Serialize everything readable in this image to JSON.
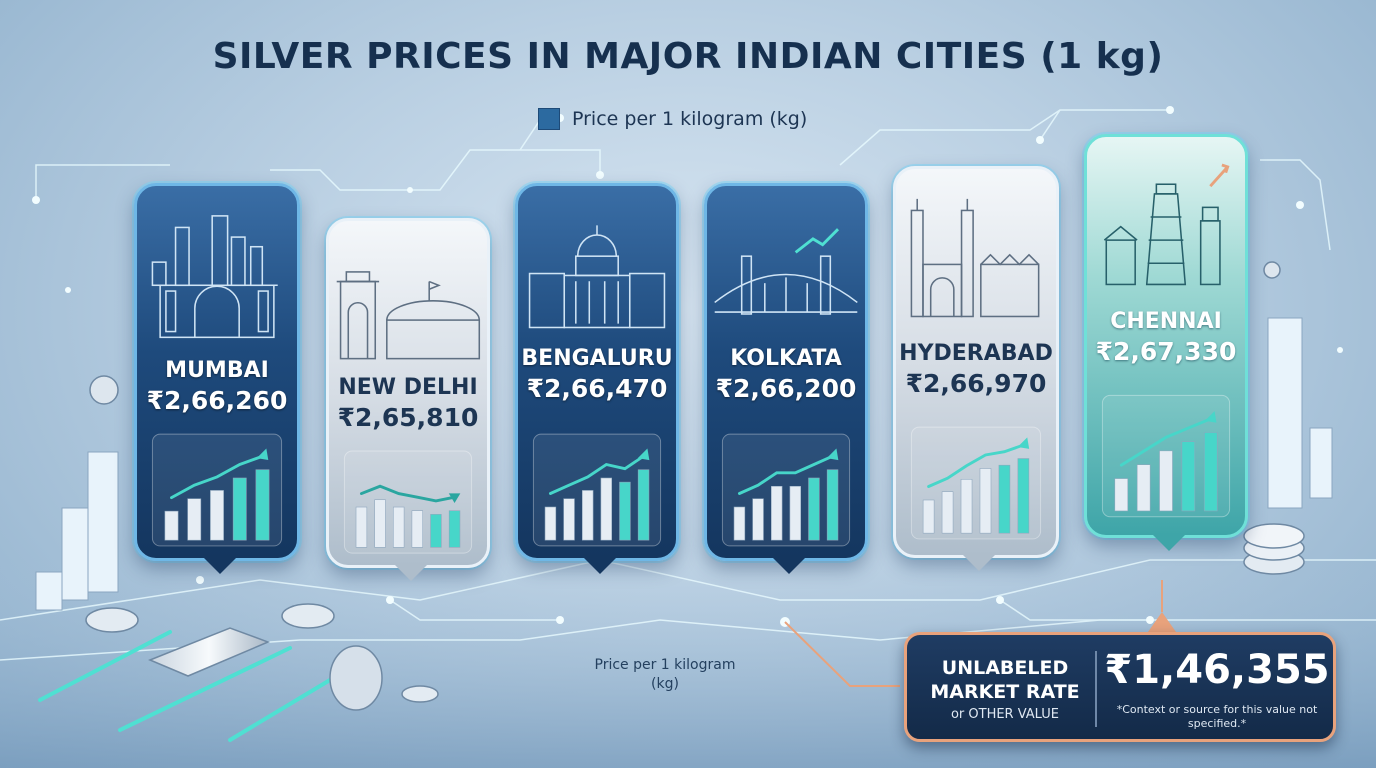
{
  "title": "SILVER PRICES IN MAJOR INDIAN CITIES (1 kg)",
  "legend": {
    "label": "Price per 1 kilogram (kg)",
    "color": "#2c6aa0"
  },
  "chart_data": {
    "type": "bar",
    "title": "SILVER PRICES IN MAJOR INDIAN CITIES (1 kg)",
    "categories": [
      "MUMBAI",
      "NEW DELHI",
      "BENGALURU",
      "KOLKATA",
      "HYDERABAD",
      "CHENNAI"
    ],
    "series": [
      {
        "name": "Price per 1 kilogram (kg)",
        "values": [
          266260,
          265810,
          266470,
          266200,
          266970,
          267330
        ]
      }
    ],
    "value_labels": [
      "₹2,66,260",
      "₹2,65,810",
      "₹2,66,470",
      "₹2,66,200",
      "₹2,66,970",
      "₹2,67,330"
    ],
    "xlabel": "",
    "ylabel": ""
  },
  "cards": [
    {
      "city": "MUMBAI",
      "price": "₹2,66,260",
      "style": "blue",
      "trend": "up",
      "landmark": "gateway-of-india-icon"
    },
    {
      "city": "NEW DELHI",
      "price": "₹2,65,810",
      "style": "silver",
      "trend": "down",
      "landmark": "india-gate-icon"
    },
    {
      "city": "BENGALURU",
      "price": "₹2,66,470",
      "style": "blue",
      "trend": "up",
      "landmark": "vidhana-soudha-icon"
    },
    {
      "city": "KOLKATA",
      "price": "₹2,66,200",
      "style": "blue",
      "trend": "up",
      "landmark": "howrah-bridge-icon"
    },
    {
      "city": "HYDERABAD",
      "price": "₹2,66,970",
      "style": "silver",
      "trend": "up",
      "landmark": "charminar-icon"
    },
    {
      "city": "CHENNAI",
      "price": "₹2,67,330",
      "style": "teal",
      "trend": "up",
      "landmark": "temple-gopuram-icon"
    }
  ],
  "callout": {
    "label_line1": "UNLABELED",
    "label_line2": "MARKET RATE",
    "label_line3": "or OTHER VALUE",
    "value": "₹1,46,355",
    "note": "*Context or source for this value not specified.*"
  },
  "footnote": "Price per 1 kilogram (kg)",
  "colors": {
    "title": "#16304f",
    "accent_teal": "#3fd6c8",
    "accent_orange": "#e8a27c",
    "card_blue": "#1e4a7c"
  }
}
